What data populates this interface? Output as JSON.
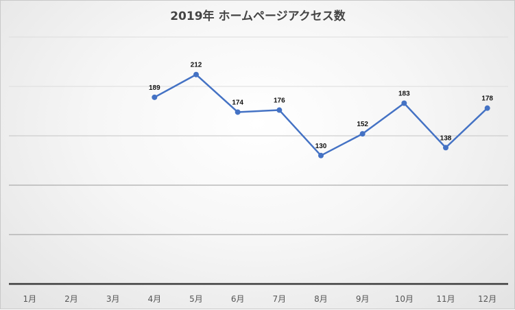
{
  "chart_data": {
    "type": "line",
    "title": "2019年 ホームページアクセス数",
    "categories": [
      "1月",
      "2月",
      "3月",
      "4月",
      "5月",
      "6月",
      "7月",
      "8月",
      "9月",
      "10月",
      "11月",
      "12月"
    ],
    "series": [
      {
        "name": "アクセス数",
        "values": [
          null,
          null,
          null,
          189,
          212,
          174,
          176,
          130,
          152,
          183,
          138,
          178
        ]
      }
    ],
    "xlabel": "",
    "ylabel": "",
    "ylim": [
      0,
      250
    ],
    "ygrid_step": 50,
    "grid": true,
    "legend": "none",
    "data_labels": true,
    "line_color": "#4472c4"
  }
}
